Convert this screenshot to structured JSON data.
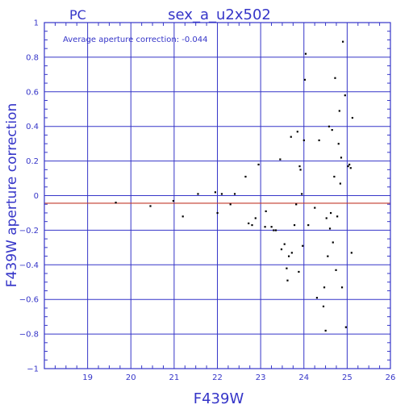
{
  "chart_data": {
    "type": "scatter",
    "panel_label": "PC",
    "title": "sex_a_u2x502",
    "annotation": "Average aperture correction: -0.044",
    "xlabel": "F439W",
    "ylabel": "F439W aperture correction",
    "xlim": [
      18,
      26
    ],
    "ylim": [
      -1,
      1
    ],
    "x_ticks": [
      19,
      20,
      21,
      22,
      23,
      24,
      25,
      26
    ],
    "x_tick_labels": [
      "19",
      "20",
      "21",
      "22",
      "23",
      "24",
      "25",
      "26"
    ],
    "y_ticks": [
      -1,
      -0.8,
      -0.6,
      -0.4,
      -0.2,
      0,
      0.2,
      0.4,
      0.6,
      0.8,
      1
    ],
    "y_tick_labels": [
      "−1",
      "−0.8",
      "−0.6",
      "−0.4",
      "−0.2",
      "0",
      "0.2",
      "0.4",
      "0.6",
      "0.8",
      "1"
    ],
    "grid": true,
    "reference_line": {
      "y": -0.044,
      "color": "#c0392b"
    },
    "colors": {
      "axes": "#3535c8",
      "points": "#000000",
      "reference": "#c0392b"
    },
    "series": [
      {
        "points": [
          [
            19.65,
            -0.04
          ],
          [
            20.45,
            -0.06
          ],
          [
            20.98,
            -0.03
          ],
          [
            21.2,
            -0.12
          ],
          [
            21.55,
            0.01
          ],
          [
            21.95,
            0.02
          ],
          [
            22.0,
            -0.1
          ],
          [
            22.1,
            0.01
          ],
          [
            22.3,
            -0.05
          ],
          [
            22.4,
            0.01
          ],
          [
            22.65,
            0.11
          ],
          [
            22.72,
            -0.16
          ],
          [
            22.8,
            -0.17
          ],
          [
            22.88,
            -0.13
          ],
          [
            22.95,
            0.18
          ],
          [
            23.1,
            -0.18
          ],
          [
            23.12,
            -0.09
          ],
          [
            23.25,
            -0.18
          ],
          [
            23.3,
            -0.2
          ],
          [
            23.35,
            -0.2
          ],
          [
            23.45,
            0.21
          ],
          [
            23.48,
            -0.31
          ],
          [
            23.55,
            -0.28
          ],
          [
            23.6,
            -0.42
          ],
          [
            23.62,
            -0.49
          ],
          [
            23.65,
            -0.35
          ],
          [
            23.7,
            0.34
          ],
          [
            23.72,
            -0.33
          ],
          [
            23.78,
            -0.17
          ],
          [
            23.82,
            -0.05
          ],
          [
            23.85,
            0.37
          ],
          [
            23.88,
            -0.44
          ],
          [
            23.9,
            0.17
          ],
          [
            23.92,
            0.15
          ],
          [
            23.95,
            0.01
          ],
          [
            23.97,
            -0.29
          ],
          [
            24.0,
            0.32
          ],
          [
            24.02,
            0.67
          ],
          [
            24.04,
            0.82
          ],
          [
            24.1,
            -0.17
          ],
          [
            24.25,
            -0.07
          ],
          [
            24.3,
            -0.59
          ],
          [
            24.35,
            0.32
          ],
          [
            24.45,
            -0.64
          ],
          [
            24.47,
            -0.53
          ],
          [
            24.5,
            -0.78
          ],
          [
            24.52,
            -0.13
          ],
          [
            24.55,
            -0.35
          ],
          [
            24.58,
            0.4
          ],
          [
            24.6,
            -0.19
          ],
          [
            24.62,
            -0.1
          ],
          [
            24.65,
            0.38
          ],
          [
            24.67,
            -0.27
          ],
          [
            24.7,
            0.11
          ],
          [
            24.72,
            0.68
          ],
          [
            24.74,
            -0.43
          ],
          [
            24.77,
            -0.12
          ],
          [
            24.8,
            0.3
          ],
          [
            24.82,
            0.49
          ],
          [
            24.84,
            0.07
          ],
          [
            24.86,
            0.22
          ],
          [
            24.88,
            -0.53
          ],
          [
            24.9,
            0.89
          ],
          [
            24.95,
            0.58
          ],
          [
            24.97,
            -0.76
          ],
          [
            25.02,
            0.17
          ],
          [
            25.05,
            0.18
          ],
          [
            25.08,
            0.16
          ],
          [
            25.1,
            -0.33
          ],
          [
            25.12,
            0.45
          ]
        ]
      }
    ]
  }
}
